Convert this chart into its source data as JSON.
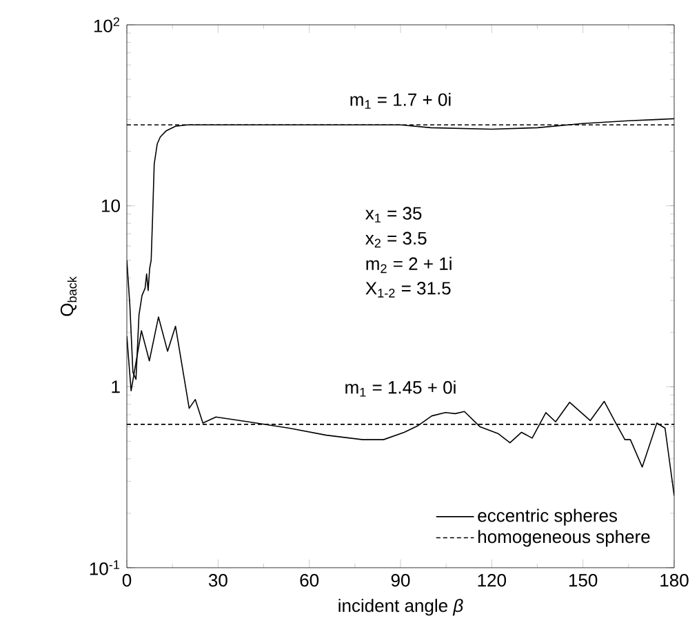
{
  "chart_data": {
    "type": "line",
    "xlabel": "incident angle *β*",
    "ylabel": "Q$_{back}$",
    "xlim": [
      0,
      180
    ],
    "xticks": [
      0,
      30,
      60,
      90,
      120,
      150,
      180
    ],
    "ylim": [
      0.1,
      100
    ],
    "yticks": [
      {
        "value": 0.1,
        "label": "10$^{-1}$"
      },
      1,
      10,
      {
        "value": 100,
        "label": "10$^{2}$"
      }
    ],
    "log": "y",
    "legend": "bottom right",
    "grid": false,
    "marker": "none",
    "series": [
      {
        "name": "eccentric spheres",
        "color": "#000000",
        "line_style": "solid",
        "x": [
          0,
          1,
          2,
          3,
          4,
          5,
          6,
          6.5,
          7,
          7.5,
          8,
          8.5,
          9,
          10,
          11,
          13,
          16,
          20,
          30,
          60,
          90,
          100,
          120,
          135,
          150,
          165,
          175,
          180
        ],
        "values": [
          5,
          2.8,
          1.2,
          1.1,
          2.5,
          3.2,
          3.5,
          4.2,
          3.4,
          4.5,
          5,
          9,
          17,
          22,
          24,
          26,
          27.5,
          28,
          28,
          28,
          28,
          27,
          26.5,
          27,
          28.5,
          29.5,
          30,
          30.3
        ]
      },
      {
        "color": "#000000",
        "line_style": "solid",
        "x": [
          0,
          1.4,
          4.8,
          7.4,
          10.4,
          13.4,
          16,
          20.5,
          22.5,
          25,
          29.3,
          40,
          53.5,
          65.6,
          77.6,
          84.4,
          91.2,
          95.8,
          100.3,
          104.8,
          108,
          111,
          116.2,
          122.2,
          126,
          129.8,
          133.3,
          137.8,
          141,
          145.6,
          152.4,
          157,
          160.8,
          163.8,
          165.6,
          169.5,
          174.3,
          177,
          180
        ],
        "values": [
          1.9,
          0.95,
          2.04,
          1.39,
          2.43,
          1.57,
          2.16,
          0.76,
          0.85,
          0.63,
          0.68,
          0.64,
          0.59,
          0.54,
          0.51,
          0.51,
          0.56,
          0.61,
          0.69,
          0.72,
          0.71,
          0.73,
          0.6,
          0.55,
          0.49,
          0.56,
          0.52,
          0.72,
          0.64,
          0.82,
          0.65,
          0.83,
          0.63,
          0.51,
          0.51,
          0.36,
          0.63,
          0.59,
          0.25
        ]
      },
      {
        "name": "homogeneous sphere",
        "color": "#000000",
        "line_style": "dashed",
        "x": [
          0,
          180
        ],
        "values": [
          28,
          28
        ]
      },
      {
        "color": "#000000",
        "line_style": "dashed",
        "x": [
          0,
          180
        ],
        "values": [
          0.62,
          0.62
        ]
      }
    ],
    "annotations": [
      "m$_{1}$ = 1.7 + 0i",
      "x$_{1}$ = 35",
      "x$_{2}$ = 3.5",
      "m$_{2}$ = 2 + 1i",
      "X$_{1-2}$ = 31.5",
      "m$_{1}$ = 1.45 + 0i"
    ]
  }
}
